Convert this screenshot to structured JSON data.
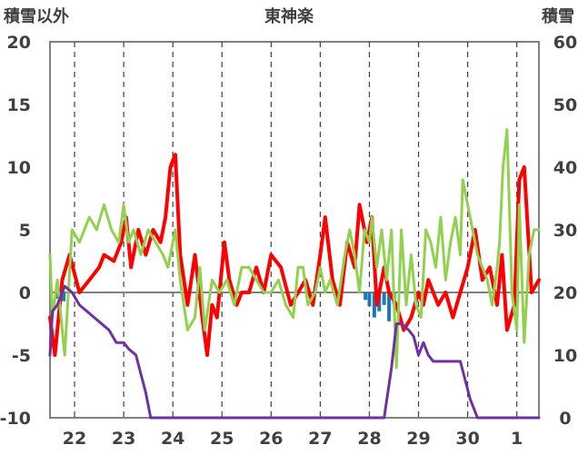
{
  "chart_data": {
    "type": "line",
    "title": "東神楽",
    "ylabel_left": "積雪以外",
    "ylabel_right": "積雪",
    "xlabel": "",
    "x_day_labels": [
      "22",
      "23",
      "24",
      "25",
      "26",
      "27",
      "28",
      "29",
      "30",
      "1"
    ],
    "xlim": [
      21.5,
      31.45
    ],
    "ylim_left": [
      -10,
      20
    ],
    "ylim_right": [
      0,
      60
    ],
    "yticks_left": [
      -10,
      -5,
      0,
      5,
      10,
      15,
      20
    ],
    "yticks_right": [
      0,
      10,
      20,
      30,
      40,
      50,
      60
    ],
    "grid": "vertical dashed at midnight",
    "legend": "none",
    "colors": {
      "temperature": "#ff0000",
      "humidity_like": "#92d050",
      "snow_depth": "#7030a0",
      "precipitation": "#1f78b4"
    },
    "series": [
      {
        "axis": "left",
        "color": "#ff0000",
        "x": [
          21.5,
          21.6,
          21.75,
          21.9,
          22.1,
          22.3,
          22.5,
          22.6,
          22.8,
          22.95,
          23.05,
          23.15,
          23.3,
          23.45,
          23.6,
          23.75,
          23.85,
          23.95,
          24.05,
          24.15,
          24.3,
          24.45,
          24.6,
          24.7,
          24.8,
          24.9,
          25.05,
          25.15,
          25.3,
          25.4,
          25.55,
          25.7,
          25.85,
          26.0,
          26.2,
          26.4,
          26.55,
          26.7,
          26.85,
          27.0,
          27.1,
          27.25,
          27.4,
          27.55,
          27.7,
          27.8,
          27.95,
          28.05,
          28.15,
          28.3,
          28.4,
          28.55,
          28.7,
          28.85,
          29.0,
          29.1,
          29.2,
          29.4,
          29.55,
          29.7,
          29.85,
          30.0,
          30.15,
          30.3,
          30.45,
          30.6,
          30.7,
          30.8,
          30.95,
          31.05,
          31.15,
          31.3,
          31.45
        ],
        "y": [
          -2,
          -5,
          1,
          3,
          0,
          1,
          2,
          3,
          2.5,
          4,
          6,
          2,
          5,
          3,
          5,
          4,
          6,
          10,
          11,
          3,
          -1,
          3,
          -2,
          -5,
          -1,
          -2,
          4,
          1,
          -1,
          0,
          0,
          2,
          0,
          3,
          2,
          -1,
          0,
          1,
          -1,
          3,
          6,
          1,
          -1,
          4,
          2,
          7,
          4,
          6,
          -1,
          2,
          0,
          -1,
          -3,
          -2,
          0,
          -1,
          1,
          -1,
          0,
          -2,
          0,
          2,
          5,
          1,
          2,
          -1,
          3,
          -3,
          -1,
          9,
          10,
          0,
          1
        ]
      },
      {
        "axis": "left",
        "color": "#92d050",
        "x": [
          21.5,
          21.55,
          21.65,
          21.8,
          21.95,
          22.1,
          22.3,
          22.45,
          22.6,
          22.75,
          22.9,
          23.0,
          23.1,
          23.2,
          23.35,
          23.5,
          23.65,
          23.8,
          23.9,
          24.05,
          24.15,
          24.3,
          24.45,
          24.55,
          24.65,
          24.8,
          24.95,
          25.1,
          25.25,
          25.4,
          25.55,
          25.7,
          25.85,
          26.0,
          26.15,
          26.3,
          26.45,
          26.55,
          26.65,
          26.75,
          26.9,
          27.0,
          27.1,
          27.2,
          27.35,
          27.5,
          27.6,
          27.7,
          27.8,
          27.9,
          28.0,
          28.05,
          28.15,
          28.25,
          28.35,
          28.45,
          28.55,
          28.65,
          28.75,
          28.85,
          28.95,
          29.05,
          29.15,
          29.25,
          29.35,
          29.45,
          29.55,
          29.65,
          29.75,
          29.85,
          29.9,
          30.0,
          30.1,
          30.2,
          30.3,
          30.4,
          30.5,
          30.6,
          30.65,
          30.72,
          30.8,
          30.9,
          31.0,
          31.05,
          31.15,
          31.25,
          31.35,
          31.45
        ],
        "y": [
          3,
          -2,
          1,
          -5,
          5,
          4,
          6,
          5,
          7,
          5,
          4,
          7,
          4,
          5,
          3,
          5,
          4,
          3,
          2,
          5,
          1,
          -3,
          -2,
          2,
          -3,
          1,
          0,
          1,
          -1,
          2,
          2,
          1,
          0,
          0,
          1,
          -1,
          -2,
          2,
          2,
          -1,
          0,
          2,
          0,
          1,
          -1,
          3,
          5,
          3,
          0,
          5,
          4,
          6,
          2,
          5,
          1,
          5,
          -6,
          5,
          -1,
          3,
          -1,
          -2,
          5,
          4,
          2,
          6,
          1,
          4,
          6,
          3,
          9,
          7,
          5,
          3,
          2,
          1,
          -1,
          2,
          4,
          10,
          13,
          0,
          -3,
          7,
          -4,
          3,
          5,
          5
        ]
      },
      {
        "axis": "right",
        "color": "#7030a0",
        "x": [
          21.5,
          21.55,
          21.65,
          21.8,
          21.95,
          22.1,
          22.25,
          22.4,
          22.55,
          22.7,
          22.85,
          23.0,
          23.1,
          23.25,
          23.35,
          23.45,
          23.55,
          23.65,
          24.0,
          24.5,
          25.0,
          26.0,
          27.0,
          27.5,
          28.0,
          28.1,
          28.2,
          28.3,
          28.45,
          28.55,
          28.65,
          28.8,
          28.9,
          29.0,
          29.1,
          29.2,
          29.3,
          29.5,
          29.7,
          29.85,
          29.95,
          30.05,
          30.2,
          30.4,
          31.0,
          31.45
        ],
        "y": [
          10,
          17,
          18,
          21,
          20,
          18,
          17,
          16,
          15,
          14,
          12,
          12,
          11,
          10,
          7,
          4,
          0,
          0,
          0,
          0,
          0,
          0,
          0,
          0,
          0,
          0,
          0,
          0,
          8,
          15,
          15,
          14,
          13,
          10,
          12,
          10,
          9,
          9,
          9,
          9,
          6,
          3,
          0,
          0,
          0,
          0
        ]
      }
    ],
    "precipitation": {
      "axis": "left",
      "color": "#1f78b4",
      "x": [
        21.62,
        21.7,
        21.78,
        27.92,
        28.0,
        28.1,
        28.2,
        28.3,
        28.4,
        28.5,
        31.0
      ],
      "y": [
        -0.5,
        -1.2,
        -0.7,
        -0.6,
        -1.1,
        -2.0,
        -1.5,
        -1.0,
        -2.3,
        -0.9,
        -1.0
      ]
    }
  }
}
